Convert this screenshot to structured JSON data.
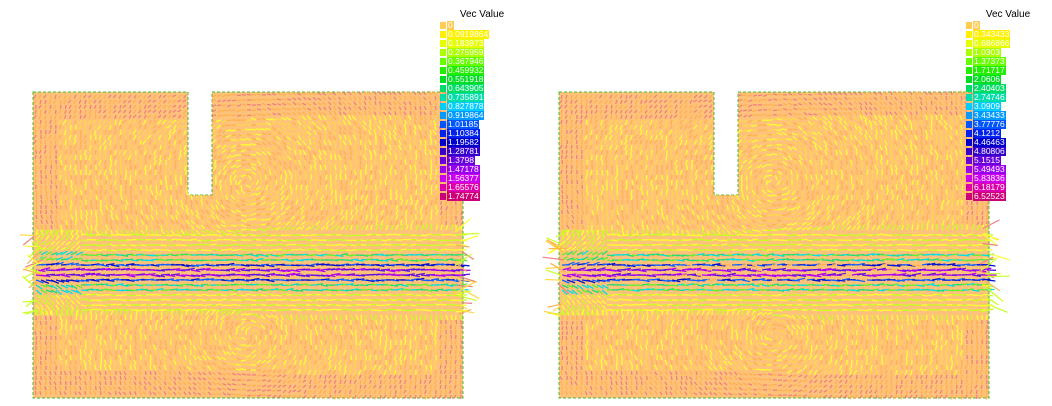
{
  "plots": [
    {
      "legend_title": "Vec Value",
      "legend": [
        {
          "label": "0",
          "color": "#ffcc55"
        },
        {
          "label": "0.0919864",
          "color": "#fff000"
        },
        {
          "label": "0.183973",
          "color": "#e6ff00"
        },
        {
          "label": "0.275959",
          "color": "#aaff00"
        },
        {
          "label": "0.367946",
          "color": "#66ff00"
        },
        {
          "label": "0.459932",
          "color": "#22ee00"
        },
        {
          "label": "0.551918",
          "color": "#00dd22"
        },
        {
          "label": "0.643905",
          "color": "#00dd66"
        },
        {
          "label": "0.735891",
          "color": "#00ddaa"
        },
        {
          "label": "0.827878",
          "color": "#00ccff"
        },
        {
          "label": "0.919864",
          "color": "#0099ff"
        },
        {
          "label": "1.01185",
          "color": "#0055ff"
        },
        {
          "label": "1.10384",
          "color": "#0022ee"
        },
        {
          "label": "1.19582",
          "color": "#0000cc"
        },
        {
          "label": "1.28781",
          "color": "#3300cc"
        },
        {
          "label": "1.3798",
          "color": "#6600dd"
        },
        {
          "label": "1.47178",
          "color": "#9900ee"
        },
        {
          "label": "1.56377",
          "color": "#cc00ee"
        },
        {
          "label": "1.65576",
          "color": "#dd00aa"
        },
        {
          "label": "1.74774",
          "color": "#cc0077"
        }
      ]
    },
    {
      "legend_title": "Vec Value",
      "legend": [
        {
          "label": "0",
          "color": "#ffcc55"
        },
        {
          "label": "0.343433",
          "color": "#fff000"
        },
        {
          "label": "0.686866",
          "color": "#e6ff00"
        },
        {
          "label": "1.0303",
          "color": "#aaff00"
        },
        {
          "label": "1.37373",
          "color": "#66ff00"
        },
        {
          "label": "1.71717",
          "color": "#22ee00"
        },
        {
          "label": "2.0606",
          "color": "#00dd22"
        },
        {
          "label": "2.40403",
          "color": "#00dd66"
        },
        {
          "label": "2.74746",
          "color": "#00ddaa"
        },
        {
          "label": "3.0909",
          "color": "#00ccff"
        },
        {
          "label": "3.43433",
          "color": "#0099ff"
        },
        {
          "label": "3.77776",
          "color": "#0055ff"
        },
        {
          "label": "4.1212",
          "color": "#0022ee"
        },
        {
          "label": "4.46463",
          "color": "#0000cc"
        },
        {
          "label": "4.80806",
          "color": "#3300cc"
        },
        {
          "label": "5.1515",
          "color": "#6600dd"
        },
        {
          "label": "5.49493",
          "color": "#9900ee"
        },
        {
          "label": "5.83836",
          "color": "#cc00ee"
        },
        {
          "label": "6.18179",
          "color": "#dd00aa"
        },
        {
          "label": "6.52523",
          "color": "#cc0077"
        }
      ]
    }
  ]
}
